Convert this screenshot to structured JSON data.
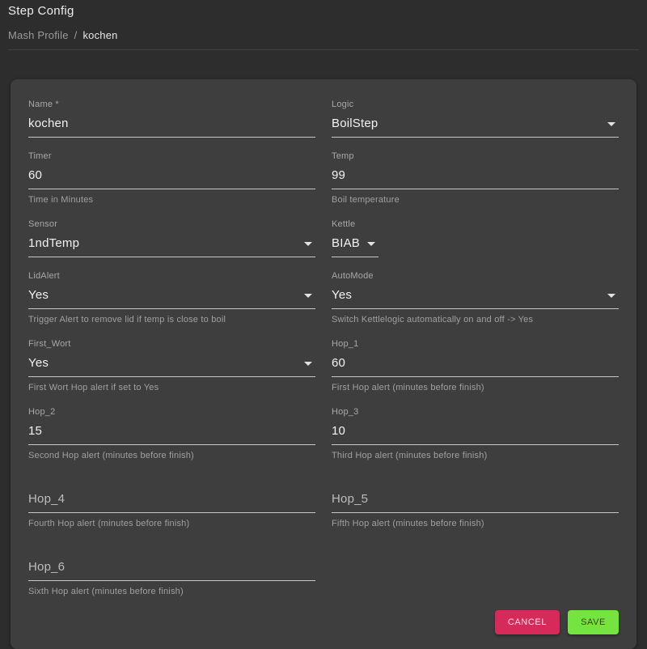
{
  "page": {
    "title": "Step Config",
    "breadcrumb": {
      "parent": "Mash Profile",
      "separator": "/",
      "current": "kochen"
    }
  },
  "form": {
    "fields": {
      "name": {
        "label": "Name *",
        "value": "kochen"
      },
      "logic": {
        "label": "Logic",
        "value": "BoilStep"
      },
      "timer": {
        "label": "Timer",
        "value": "60",
        "helper": "Time in Minutes"
      },
      "temp": {
        "label": "Temp",
        "value": "99",
        "helper": "Boil temperature"
      },
      "sensor": {
        "label": "Sensor",
        "value": "1ndTemp"
      },
      "kettle": {
        "label": "Kettle",
        "value": "BIAB"
      },
      "lid_alert": {
        "label": "LidAlert",
        "value": "Yes",
        "helper": "Trigger Alert to remove lid if temp is close to boil"
      },
      "auto_mode": {
        "label": "AutoMode",
        "value": "Yes",
        "helper": "Switch Kettlelogic automatically on and off -> Yes"
      },
      "first_wort": {
        "label": "First_Wort",
        "value": "Yes",
        "helper": "First Wort Hop alert if set to Yes"
      },
      "hop_1": {
        "label": "Hop_1",
        "value": "60",
        "helper": "First Hop alert (minutes before finish)"
      },
      "hop_2": {
        "label": "Hop_2",
        "value": "15",
        "helper": "Second Hop alert (minutes before finish)"
      },
      "hop_3": {
        "label": "Hop_3",
        "value": "10",
        "helper": "Third Hop alert (minutes before finish)"
      },
      "hop_4": {
        "label": "Hop_4",
        "value": "",
        "helper": "Fourth Hop alert (minutes before finish)"
      },
      "hop_5": {
        "label": "Hop_5",
        "value": "",
        "helper": "Fifth Hop alert (minutes before finish)"
      },
      "hop_6": {
        "label": "Hop_6",
        "value": "",
        "helper": "Sixth Hop alert (minutes before finish)"
      }
    },
    "buttons": {
      "cancel": "CANCEL",
      "save": "SAVE"
    }
  },
  "colors": {
    "page_bg": "#2d2d2d",
    "card_bg": "#3e3e3e",
    "underline": "#c8c8c8",
    "cancel_button_bg": "#d62a5b",
    "save_button_bg": "#76e440"
  }
}
